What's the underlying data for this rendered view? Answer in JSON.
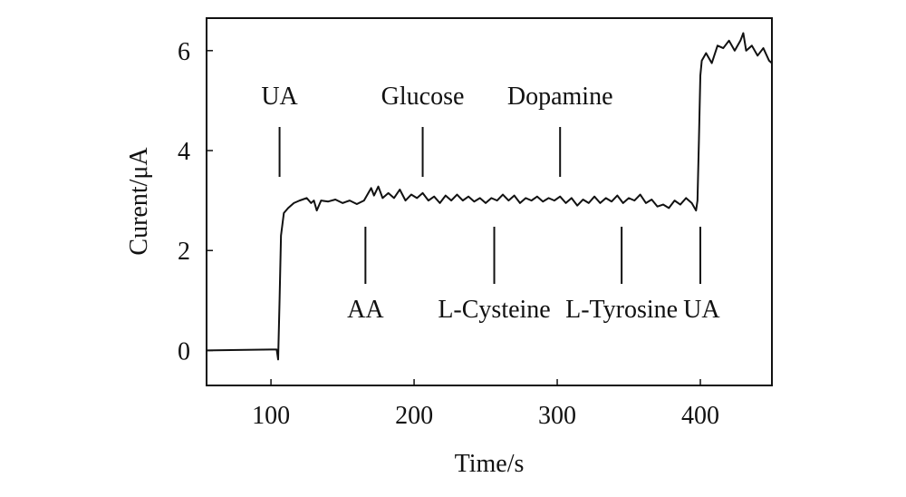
{
  "chart_data": {
    "type": "line",
    "xlabel": "Time/s",
    "ylabel": "Curent/μA",
    "xlim": [
      55,
      450
    ],
    "ylim": [
      -0.7,
      6.65
    ],
    "xticks": [
      100,
      200,
      300,
      400
    ],
    "yticks": [
      0,
      2,
      4,
      6
    ],
    "grid": false,
    "series": [
      {
        "color": "#111111",
        "x": [
          55,
          100,
          104,
          105,
          106,
          107,
          109,
          112,
          116,
          120,
          125,
          128,
          130,
          132,
          135,
          140,
          145,
          150,
          155,
          160,
          165,
          168,
          170,
          172,
          175,
          178,
          182,
          186,
          190,
          194,
          198,
          202,
          206,
          210,
          214,
          218,
          222,
          226,
          230,
          234,
          238,
          242,
          246,
          250,
          254,
          258,
          262,
          266,
          270,
          274,
          278,
          282,
          286,
          290,
          294,
          298,
          302,
          306,
          310,
          314,
          318,
          322,
          326,
          330,
          334,
          338,
          342,
          346,
          350,
          354,
          358,
          362,
          366,
          370,
          374,
          378,
          382,
          386,
          390,
          394,
          397,
          398,
          399,
          400,
          401,
          404,
          408,
          412,
          416,
          420,
          424,
          428,
          430,
          432,
          436,
          440,
          444,
          448,
          450
        ],
        "values": [
          0,
          0.02,
          0.02,
          -0.18,
          1.0,
          2.3,
          2.75,
          2.85,
          2.95,
          3.0,
          3.05,
          2.95,
          3.0,
          2.8,
          3.0,
          2.98,
          3.02,
          2.95,
          3.0,
          2.93,
          3.0,
          3.15,
          3.25,
          3.1,
          3.28,
          3.05,
          3.15,
          3.05,
          3.22,
          3.0,
          3.12,
          3.05,
          3.15,
          3.0,
          3.08,
          2.95,
          3.1,
          3.0,
          3.12,
          3.0,
          3.08,
          2.98,
          3.05,
          2.95,
          3.05,
          3.0,
          3.12,
          3.0,
          3.1,
          2.95,
          3.05,
          3.0,
          3.08,
          2.98,
          3.05,
          3.0,
          3.08,
          2.95,
          3.05,
          2.9,
          3.02,
          2.95,
          3.08,
          2.95,
          3.05,
          2.98,
          3.1,
          2.95,
          3.05,
          3.0,
          3.12,
          2.95,
          3.02,
          2.88,
          2.92,
          2.85,
          3.0,
          2.92,
          3.05,
          2.95,
          2.8,
          3.0,
          4.2,
          5.5,
          5.8,
          5.95,
          5.75,
          6.1,
          6.05,
          6.2,
          6.0,
          6.2,
          6.35,
          6.0,
          6.1,
          5.9,
          6.05,
          5.8,
          5.75
        ]
      }
    ],
    "annotations": [
      {
        "text": "UA",
        "x": 106,
        "side": "above"
      },
      {
        "text": "Glucose",
        "x": 206,
        "side": "above"
      },
      {
        "text": "Dopamine",
        "x": 302,
        "side": "above"
      },
      {
        "text": "AA",
        "x": 166,
        "side": "below"
      },
      {
        "text": "L-Cysteine",
        "x": 256,
        "side": "below"
      },
      {
        "text": "L-Tyrosine",
        "x": 345,
        "side": "below"
      },
      {
        "text": "UA",
        "x": 400,
        "side": "below"
      }
    ]
  }
}
